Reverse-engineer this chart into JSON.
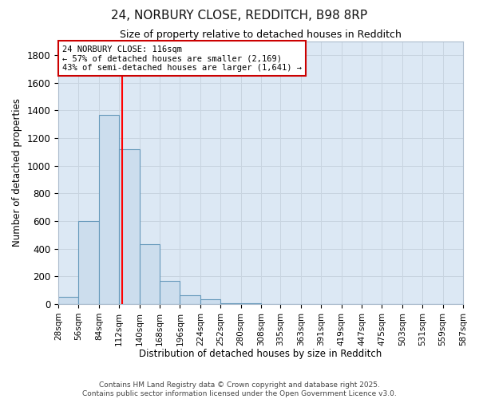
{
  "title1": "24, NORBURY CLOSE, REDDITCH, B98 8RP",
  "title2": "Size of property relative to detached houses in Redditch",
  "xlabel": "Distribution of detached houses by size in Redditch",
  "ylabel": "Number of detached properties",
  "bin_edges": [
    28,
    56,
    84,
    112,
    140,
    168,
    196,
    224,
    252,
    280,
    308,
    335,
    363,
    391,
    419,
    447,
    475,
    503,
    531,
    559,
    587
  ],
  "bar_heights": [
    50,
    600,
    1370,
    1120,
    430,
    170,
    65,
    35,
    8,
    4,
    2,
    1,
    0,
    0,
    0,
    0,
    0,
    0,
    0,
    0
  ],
  "bar_color": "#ccdded",
  "bar_edgecolor": "#6699bb",
  "bar_linewidth": 0.8,
  "grid_color": "#c8d4e0",
  "background_color": "#dce8f4",
  "red_line_x": 116,
  "annotation_text": "24 NORBURY CLOSE: 116sqm\n← 57% of detached houses are smaller (2,169)\n43% of semi-detached houses are larger (1,641) →",
  "annotation_box_color": "#ffffff",
  "annotation_box_edgecolor": "#cc0000",
  "ylim": [
    0,
    1900
  ],
  "yticks": [
    0,
    200,
    400,
    600,
    800,
    1000,
    1200,
    1400,
    1600,
    1800
  ],
  "footer_line1": "Contains HM Land Registry data © Crown copyright and database right 2025.",
  "footer_line2": "Contains public sector information licensed under the Open Government Licence v3.0.",
  "tick_labels": [
    "28sqm",
    "56sqm",
    "84sqm",
    "112sqm",
    "140sqm",
    "168sqm",
    "196sqm",
    "224sqm",
    "252sqm",
    "280sqm",
    "308sqm",
    "335sqm",
    "363sqm",
    "391sqm",
    "419sqm",
    "447sqm",
    "475sqm",
    "503sqm",
    "531sqm",
    "559sqm",
    "587sqm"
  ]
}
